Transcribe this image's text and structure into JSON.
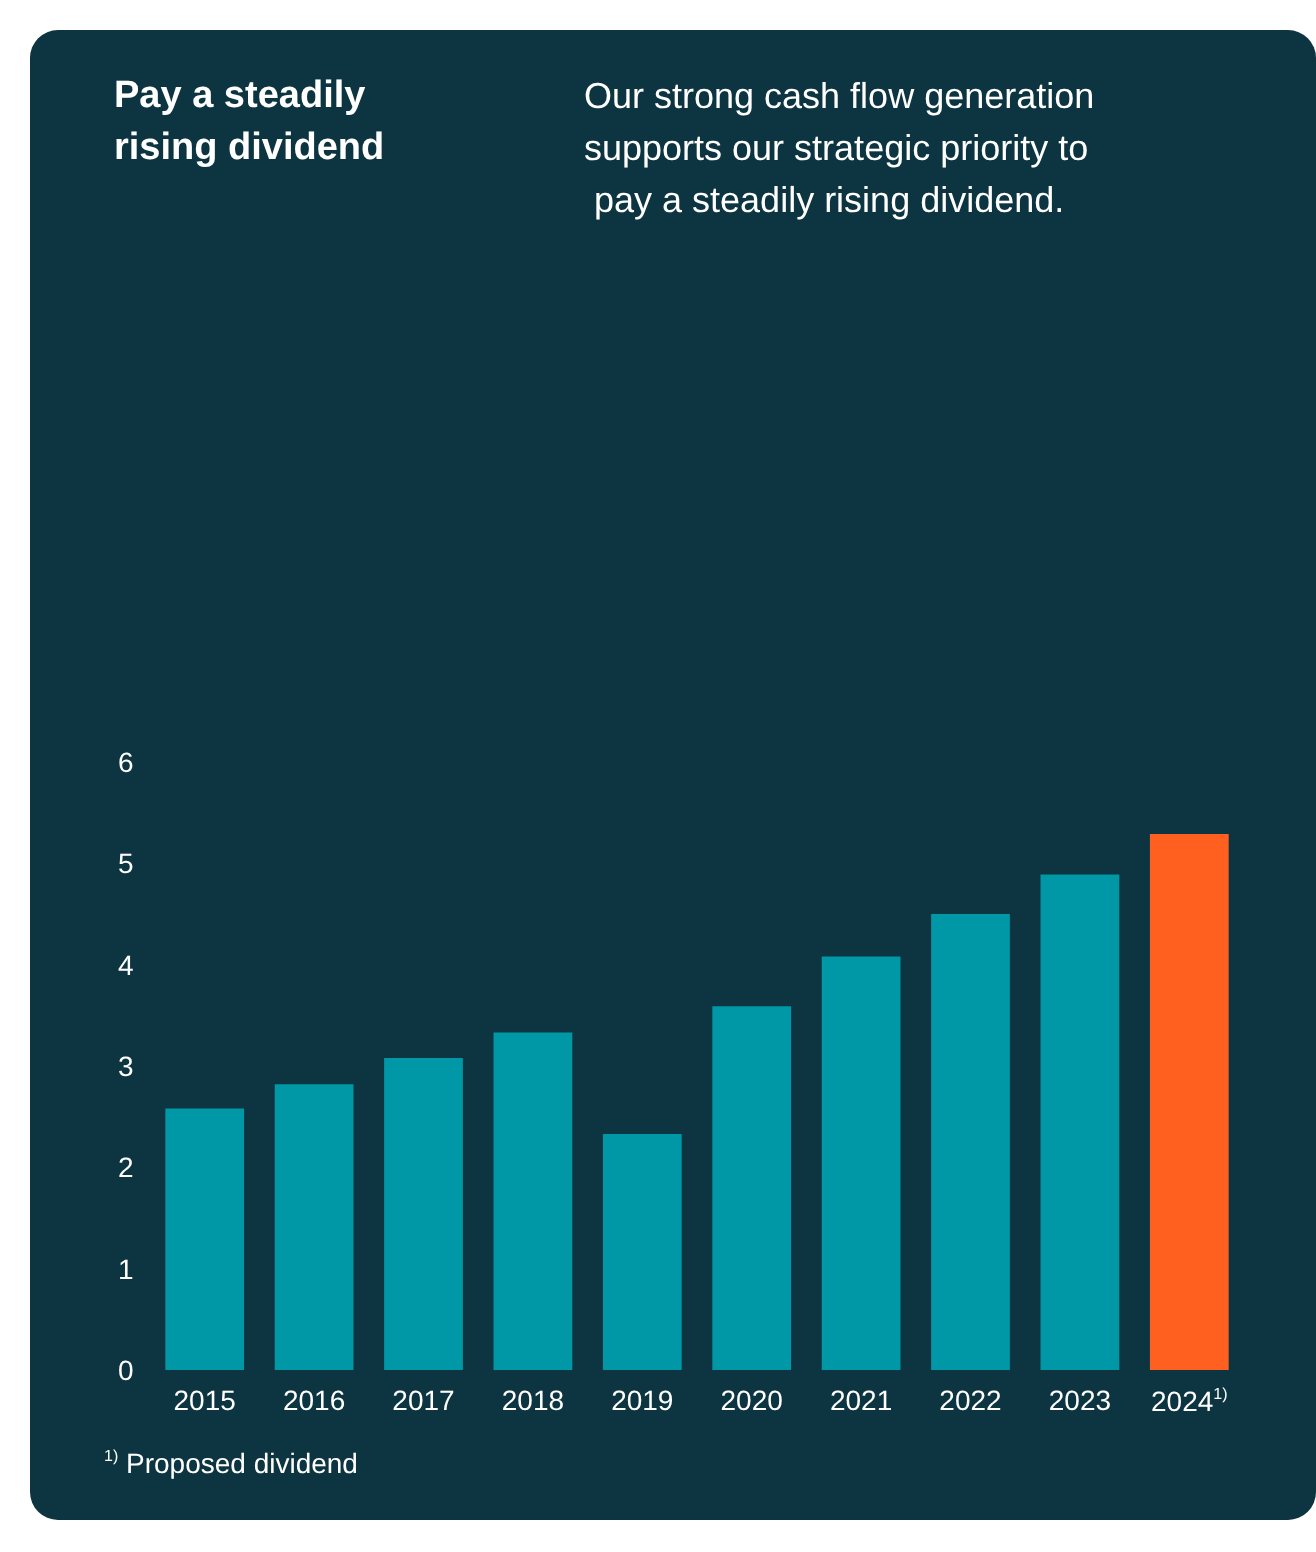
{
  "chart_data": {
    "type": "bar",
    "title": "Pay a steadily rising dividend",
    "subtitle": "Our strong cash flow generation supports our strategic priority to pay a steadily rising dividend.",
    "categories": [
      "2015",
      "2016",
      "2017",
      "2018",
      "2019",
      "2020",
      "2021",
      "2022",
      "2023",
      "2024$^{1)}$"
    ],
    "values": [
      2.58,
      2.82,
      3.08,
      3.33,
      2.33,
      3.59,
      4.08,
      4.5,
      4.89,
      5.29
    ],
    "colors": [
      "#0097a7",
      "#0097a7",
      "#0097a7",
      "#0097a7",
      "#0097a7",
      "#0097a7",
      "#0097a7",
      "#0097a7",
      "#0097a7",
      "#ff5f1f"
    ],
    "ylim": [
      0,
      6
    ],
    "yticks": [
      0,
      1,
      2,
      3,
      4,
      5,
      6
    ],
    "grid": false,
    "annotations": [
      "$^{1)}$ Proposed dividend"
    ]
  }
}
